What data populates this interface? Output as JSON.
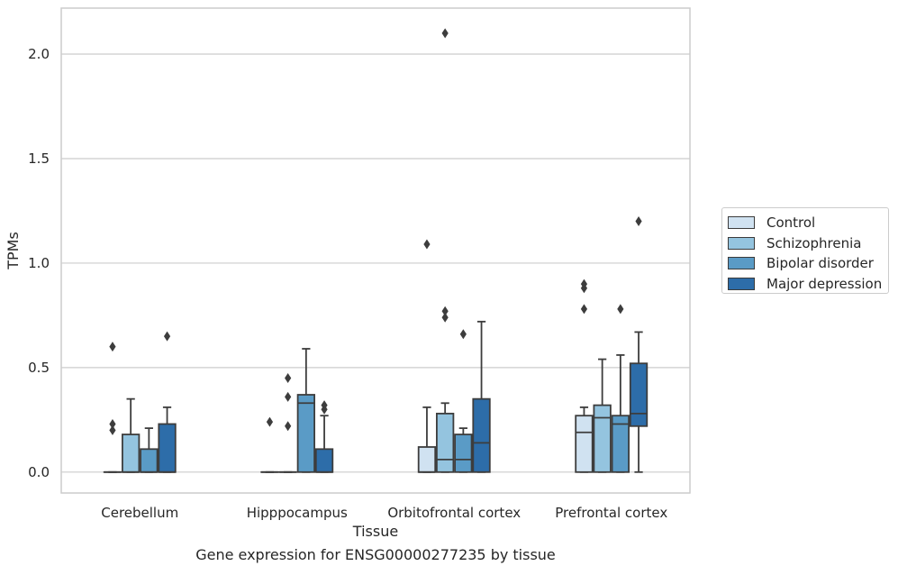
{
  "chart_data": {
    "type": "boxplot",
    "xlabel": "Tissue",
    "ylabel": "TPMs",
    "caption": "Gene expression for ENSG00000277235 by tissue",
    "ylim": [
      -0.1,
      2.22
    ],
    "yticks": [
      0.0,
      0.5,
      1.0,
      1.5,
      2.0
    ],
    "ytick_labels": [
      "0.0",
      "0.5",
      "1.0",
      "1.5",
      "2.0"
    ],
    "grid": "horizontal",
    "legend_position": "right",
    "categories": [
      "Cerebellum",
      "Hipppocampus",
      "Orbitofrontal cortex",
      "Prefrontal cortex"
    ],
    "series": [
      {
        "name": "Control",
        "color": "#d0e2f1",
        "boxes": [
          {
            "whislo": 0,
            "q1": 0,
            "med": 0,
            "q3": 0,
            "whishi": 0,
            "fliers": [
              0.2,
              0.23,
              0.6
            ]
          },
          {
            "whislo": 0,
            "q1": 0,
            "med": 0,
            "q3": 0,
            "whishi": 0,
            "fliers": [
              0.24
            ]
          },
          {
            "whislo": 0,
            "q1": 0,
            "med": 0,
            "q3": 0.12,
            "whishi": 0.31,
            "fliers": [
              1.09
            ]
          },
          {
            "whislo": 0,
            "q1": 0,
            "med": 0.19,
            "q3": 0.27,
            "whishi": 0.31,
            "fliers": [
              0.78,
              0.88,
              0.9
            ]
          }
        ]
      },
      {
        "name": "Schizophrenia",
        "color": "#94c4df",
        "boxes": [
          {
            "whislo": 0,
            "q1": 0,
            "med": 0,
            "q3": 0.18,
            "whishi": 0.35,
            "fliers": []
          },
          {
            "whislo": 0,
            "q1": 0,
            "med": 0,
            "q3": 0,
            "whishi": 0,
            "fliers": [
              0.22,
              0.36,
              0.45
            ]
          },
          {
            "whislo": 0,
            "q1": 0,
            "med": 0.06,
            "q3": 0.28,
            "whishi": 0.33,
            "fliers": [
              0.74,
              0.77,
              2.1
            ]
          },
          {
            "whislo": 0,
            "q1": 0,
            "med": 0.26,
            "q3": 0.32,
            "whishi": 0.54,
            "fliers": []
          }
        ]
      },
      {
        "name": "Bipolar disorder",
        "color": "#5a9bc6",
        "boxes": [
          {
            "whislo": 0,
            "q1": 0,
            "med": 0,
            "q3": 0.11,
            "whishi": 0.21,
            "fliers": []
          },
          {
            "whislo": 0,
            "q1": 0,
            "med": 0.33,
            "q3": 0.37,
            "whishi": 0.59,
            "fliers": []
          },
          {
            "whislo": 0,
            "q1": 0,
            "med": 0.06,
            "q3": 0.18,
            "whishi": 0.21,
            "fliers": [
              0.66
            ]
          },
          {
            "whislo": 0,
            "q1": 0,
            "med": 0.23,
            "q3": 0.27,
            "whishi": 0.56,
            "fliers": [
              0.78
            ]
          }
        ]
      },
      {
        "name": "Major depression",
        "color": "#2d6da9",
        "boxes": [
          {
            "whislo": 0,
            "q1": 0,
            "med": 0,
            "q3": 0.23,
            "whishi": 0.31,
            "fliers": [
              0.65
            ]
          },
          {
            "whislo": 0,
            "q1": 0,
            "med": 0,
            "q3": 0.11,
            "whishi": 0.27,
            "fliers": [
              0.3,
              0.32
            ]
          },
          {
            "whislo": 0,
            "q1": 0,
            "med": 0.14,
            "q3": 0.35,
            "whishi": 0.72,
            "fliers": []
          },
          {
            "whislo": 0,
            "q1": 0.22,
            "med": 0.28,
            "q3": 0.52,
            "whishi": 0.67,
            "fliers": [
              1.2
            ]
          }
        ]
      }
    ]
  }
}
